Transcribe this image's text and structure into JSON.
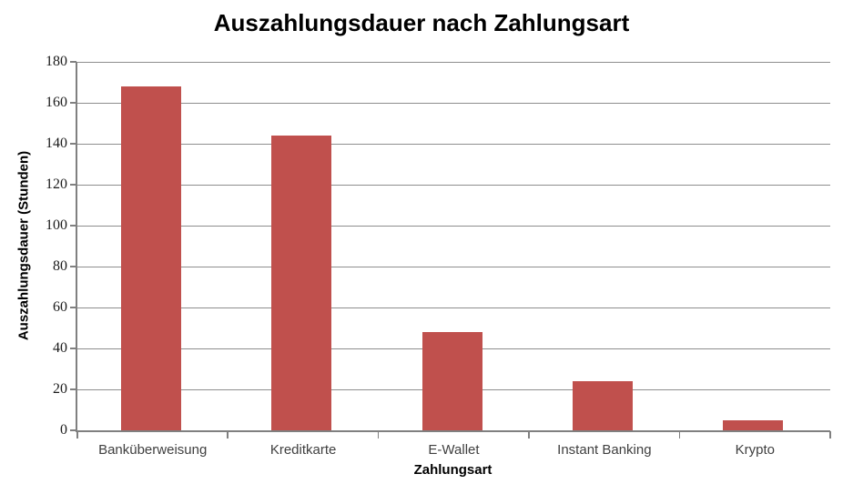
{
  "chart_data": {
    "type": "bar",
    "title": "Auszahlungsdauer nach Zahlungsart",
    "xlabel": "Zahlungsart",
    "ylabel": "Auszahlungsdauer (Stunden)",
    "categories": [
      "Banküberweisung",
      "Kreditkarte",
      "E-Wallet",
      "Instant Banking",
      "Krypto"
    ],
    "values": [
      168,
      144,
      48,
      24,
      5
    ],
    "ylim": [
      0,
      180
    ],
    "ytick_step": 20,
    "ytick_labels": [
      "0",
      "20",
      "40",
      "60",
      "80",
      "100",
      "120",
      "140",
      "160",
      "180"
    ],
    "grid": "horizontal gridlines on",
    "legend": "none",
    "colors": {
      "bar": "#C0504D",
      "gridline": "#8E8E8E",
      "axis": "#808080",
      "title_text": "#000000",
      "tick_text": "#1A1A1A",
      "category_text": "#3F3F3F",
      "background": "#FFFFFF"
    }
  }
}
